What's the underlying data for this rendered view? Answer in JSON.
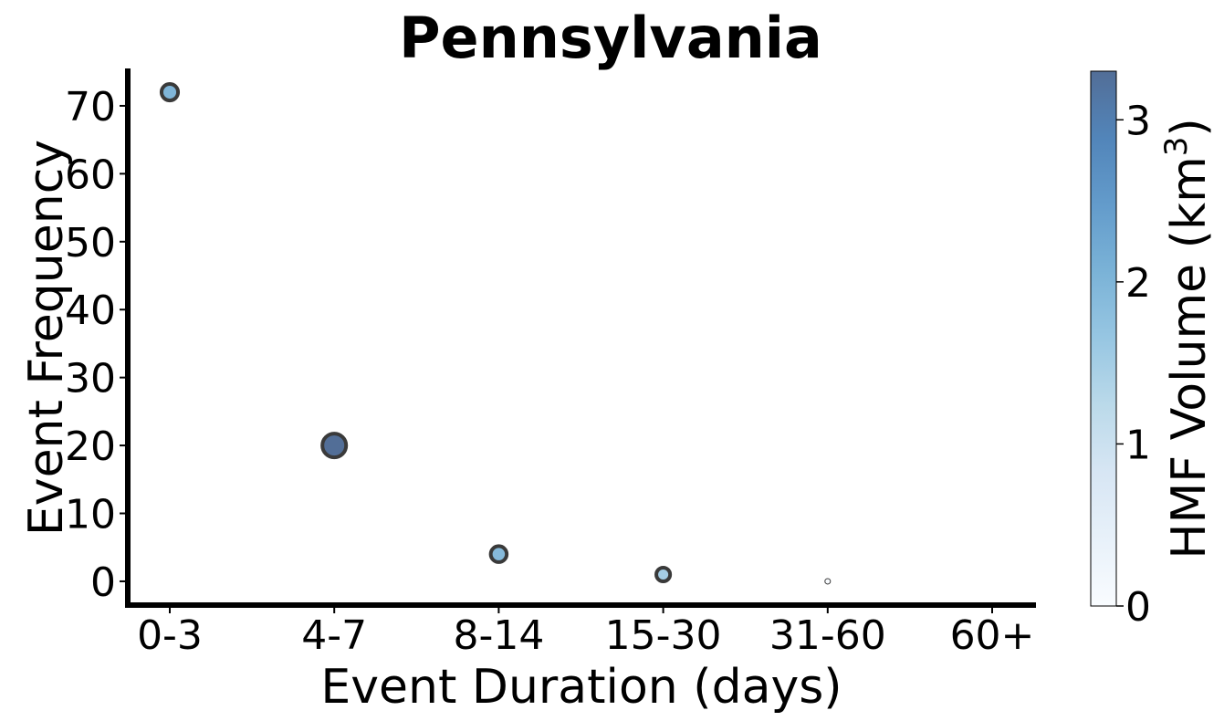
{
  "chart_data": {
    "type": "scatter",
    "title": "Pennsylvania",
    "xlabel": "Event Duration (days)",
    "ylabel": "Event Frequency",
    "categories": [
      "0-3",
      "4-7",
      "8-14",
      "15-30",
      "31-60",
      "60+"
    ],
    "yticks": [
      0,
      10,
      20,
      30,
      40,
      50,
      60,
      70
    ],
    "ylim": [
      -3.5,
      75.5
    ],
    "points": [
      {
        "category": "0-3",
        "frequency": 72,
        "volume": 2.0
      },
      {
        "category": "4-7",
        "frequency": 20,
        "volume": 3.3
      },
      {
        "category": "8-14",
        "frequency": 4,
        "volume": 1.9
      },
      {
        "category": "15-30",
        "frequency": 1,
        "volume": 1.5
      },
      {
        "category": "31-60",
        "frequency": 0,
        "volume": 0.0
      }
    ],
    "colorbar": {
      "label_text": "HMF Volume (km",
      "label_superscript": "3",
      "label_close": ")",
      "ticks": [
        0,
        1,
        2,
        3
      ],
      "range": [
        0,
        3.3
      ],
      "colormap": "Blues",
      "alpha": 0.7
    },
    "grid": false,
    "legend": "none"
  }
}
